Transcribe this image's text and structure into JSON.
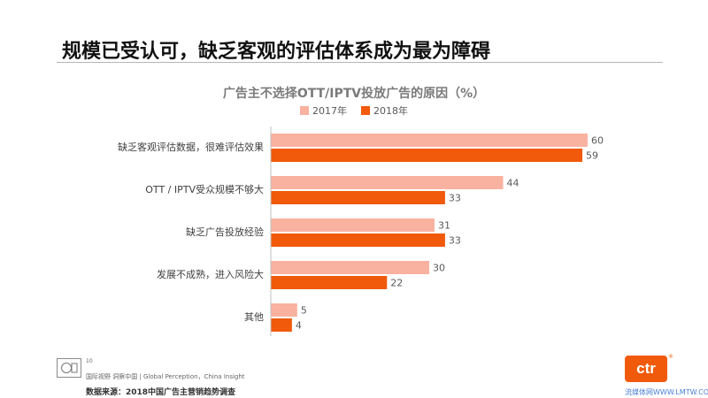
{
  "slide": {
    "title": "规模已受认可，缺乏客观的评估体系成为最为障碍",
    "page_number": "10",
    "footer_tagline": "国际视野  洞察中国 | Global Perception，China Insight",
    "footer_source": "数据来源：2018中国广告主营销趋势调查",
    "brand_logo": "ctr",
    "brand_reg": "®",
    "watermark": "流媒体网WWW.LMTW.COM"
  },
  "colors": {
    "series_2017": "#f9b29f",
    "series_2018": "#f05a0a",
    "brand": "#f05a0a"
  },
  "chart_data": {
    "type": "bar",
    "orientation": "horizontal",
    "title": "广告主不选择OTT/IPTV投放广告的原因（%）",
    "categories": [
      "缺乏客观评估数据，很难评估效果",
      "OTT / IPTV受众规模不够大",
      "缺乏广告投放经验",
      "发展不成熟，进入风险大",
      "其他"
    ],
    "series": [
      {
        "name": "2017年",
        "values": [
          60,
          44,
          31,
          30,
          5
        ]
      },
      {
        "name": "2018年",
        "values": [
          59,
          33,
          33,
          22,
          4
        ]
      }
    ],
    "xlim": [
      0,
      60
    ],
    "grid": false,
    "legend_position": "top",
    "data_labels": true
  }
}
